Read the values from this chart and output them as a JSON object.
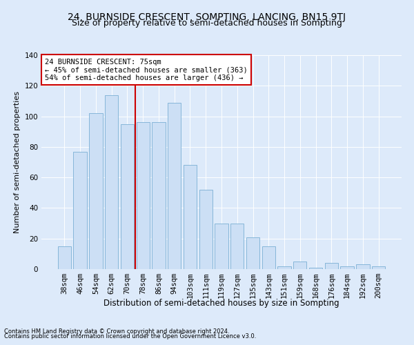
{
  "title": "24, BURNSIDE CRESCENT, SOMPTING, LANCING, BN15 9TJ",
  "subtitle": "Size of property relative to semi-detached houses in Sompting",
  "xlabel": "Distribution of semi-detached houses by size in Sompting",
  "ylabel": "Number of semi-detached properties",
  "categories": [
    "38sqm",
    "46sqm",
    "54sqm",
    "62sqm",
    "70sqm",
    "78sqm",
    "86sqm",
    "94sqm",
    "103sqm",
    "111sqm",
    "119sqm",
    "127sqm",
    "135sqm",
    "143sqm",
    "151sqm",
    "159sqm",
    "168sqm",
    "176sqm",
    "184sqm",
    "192sqm",
    "200sqm"
  ],
  "values": [
    15,
    77,
    102,
    114,
    95,
    96,
    96,
    109,
    68,
    52,
    30,
    30,
    21,
    15,
    2,
    5,
    1,
    4,
    2,
    3,
    2
  ],
  "bar_color": "#ccdff5",
  "bar_edge_color": "#7aafd4",
  "vline_x": 4.5,
  "vline_color": "#cc0000",
  "annotation_title": "24 BURNSIDE CRESCENT: 75sqm",
  "annotation_line1": "← 45% of semi-detached houses are smaller (363)",
  "annotation_line2": "54% of semi-detached houses are larger (436) →",
  "annotation_box_color": "#ffffff",
  "annotation_box_edge": "#cc0000",
  "ylim": [
    0,
    140
  ],
  "yticks": [
    0,
    20,
    40,
    60,
    80,
    100,
    120,
    140
  ],
  "footer1": "Contains HM Land Registry data © Crown copyright and database right 2024.",
  "footer2": "Contains public sector information licensed under the Open Government Licence v3.0.",
  "bg_color": "#ddeafa",
  "plot_bg": "#ddeafa",
  "title_fontsize": 10,
  "subtitle_fontsize": 9,
  "xlabel_fontsize": 8.5,
  "ylabel_fontsize": 8,
  "tick_fontsize": 7.5,
  "footer_fontsize": 6,
  "ann_fontsize": 7.5
}
